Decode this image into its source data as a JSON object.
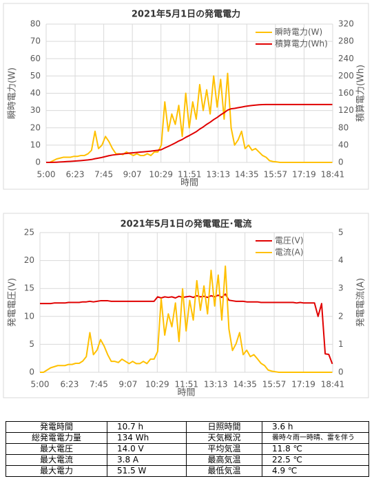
{
  "chart_data": [
    {
      "type": "line",
      "title": "2021年5月1日の発電電力",
      "xlabel": "時間",
      "ylabel": "瞬時電力(W)",
      "y2label": "積算電力(Wh)",
      "x": [
        "5:00",
        "5:10",
        "5:20",
        "5:30",
        "5:40",
        "5:50",
        "6:00",
        "6:10",
        "6:20",
        "6:30",
        "6:40",
        "6:50",
        "7:00",
        "7:10",
        "7:20",
        "7:30",
        "7:40",
        "7:50",
        "8:00",
        "8:10",
        "8:20",
        "8:30",
        "8:40",
        "8:50",
        "9:00",
        "9:10",
        "9:20",
        "9:30",
        "9:40",
        "9:50",
        "10:00",
        "10:10",
        "10:20",
        "10:30",
        "10:40",
        "10:50",
        "11:00",
        "11:10",
        "11:20",
        "11:30",
        "11:40",
        "11:50",
        "12:00",
        "12:10",
        "12:20",
        "12:30",
        "12:40",
        "12:50",
        "13:00",
        "13:10",
        "13:20",
        "13:30",
        "13:40",
        "13:50",
        "14:00",
        "14:10",
        "14:20",
        "14:30",
        "14:40",
        "14:50",
        "15:00",
        "15:10",
        "15:20",
        "15:30",
        "15:40",
        "15:50",
        "16:00",
        "16:10",
        "16:20",
        "16:30",
        "16:40",
        "16:50",
        "17:00",
        "17:10",
        "17:20",
        "17:30",
        "17:40",
        "17:50",
        "18:00",
        "18:10",
        "18:20",
        "18:30",
        "18:40"
      ],
      "xlim": [
        "5:00",
        "18:41"
      ],
      "xticks": [
        "5:00",
        "6:23",
        "7:45",
        "9:07",
        "10:29",
        "11:51",
        "13:13",
        "14:35",
        "15:57",
        "17:19",
        "18:41"
      ],
      "ylim": [
        0,
        80
      ],
      "yticks": [
        0,
        10,
        20,
        30,
        40,
        50,
        60,
        70,
        80
      ],
      "y2lim": [
        0,
        320
      ],
      "y2ticks": [
        0,
        40,
        80,
        120,
        160,
        200,
        240,
        280,
        320
      ],
      "grid": true,
      "legend": "upper right",
      "series": [
        {
          "name": "瞬時電力(W)",
          "color": "#ffc000",
          "axis": "y",
          "values": [
            0,
            0,
            1,
            2,
            2.5,
            3,
            3,
            3,
            3.5,
            3.5,
            4,
            4,
            5,
            7,
            18,
            8,
            10,
            15,
            12,
            8,
            5,
            5,
            4.5,
            6,
            5,
            4,
            5,
            4,
            4,
            5,
            4,
            6,
            6,
            10,
            35,
            18,
            28,
            22,
            33,
            15,
            40,
            20,
            35,
            25,
            45,
            30,
            42,
            28,
            50,
            32,
            48,
            25,
            51.5,
            20,
            10,
            13,
            18,
            8,
            10,
            7,
            8,
            6,
            4,
            3,
            1,
            0.5,
            0.3,
            0,
            0,
            0,
            0,
            0,
            0,
            0,
            0,
            0,
            0,
            0,
            0,
            0,
            0,
            0,
            0
          ]
        },
        {
          "name": "積算電力(Wh)",
          "color": "#e00000",
          "axis": "y2",
          "values": [
            0,
            0,
            0.2,
            0.5,
            0.9,
            1.4,
            1.9,
            2.4,
            3,
            3.6,
            4.2,
            4.9,
            5.7,
            6.7,
            8.5,
            10,
            11.5,
            13.5,
            15.5,
            17,
            18,
            19,
            19.8,
            20.7,
            21.6,
            22.3,
            23.1,
            23.8,
            24.5,
            25.3,
            26,
            27,
            28,
            29.5,
            33.5,
            37,
            41,
            45,
            49.5,
            53,
            58,
            62,
            66.5,
            71,
            77,
            82,
            88,
            93,
            99,
            104,
            110,
            115,
            121,
            124,
            125,
            126.5,
            128,
            129.5,
            130.8,
            131.8,
            132.6,
            133.3,
            133.7,
            133.9,
            134,
            134,
            134,
            134,
            134,
            134,
            134,
            134,
            134,
            134,
            134,
            134,
            134,
            134,
            134,
            134,
            134,
            134,
            134
          ]
        }
      ]
    },
    {
      "type": "line",
      "title": "2021年5月1日の発電電圧･電流",
      "xlabel": "時間",
      "ylabel": "発電電圧(V)",
      "y2label": "発電電流(A)",
      "x": [
        "5:00",
        "5:10",
        "5:20",
        "5:30",
        "5:40",
        "5:50",
        "6:00",
        "6:10",
        "6:20",
        "6:30",
        "6:40",
        "6:50",
        "7:00",
        "7:10",
        "7:20",
        "7:30",
        "7:40",
        "7:50",
        "8:00",
        "8:10",
        "8:20",
        "8:30",
        "8:40",
        "8:50",
        "9:00",
        "9:10",
        "9:20",
        "9:30",
        "9:40",
        "9:50",
        "10:00",
        "10:10",
        "10:20",
        "10:30",
        "10:40",
        "10:50",
        "11:00",
        "11:10",
        "11:20",
        "11:30",
        "11:40",
        "11:50",
        "12:00",
        "12:10",
        "12:20",
        "12:30",
        "12:40",
        "12:50",
        "13:00",
        "13:10",
        "13:20",
        "13:30",
        "13:40",
        "13:50",
        "14:00",
        "14:10",
        "14:20",
        "14:30",
        "14:40",
        "14:50",
        "15:00",
        "15:10",
        "15:20",
        "15:30",
        "15:40",
        "15:50",
        "16:00",
        "16:10",
        "16:20",
        "16:30",
        "16:40",
        "16:50",
        "17:00",
        "17:10",
        "17:20",
        "17:30",
        "17:40",
        "17:50",
        "18:00",
        "18:10",
        "18:20",
        "18:30",
        "18:40"
      ],
      "xlim": [
        "5:00",
        "18:41"
      ],
      "xticks": [
        "5:00",
        "6:23",
        "7:45",
        "9:07",
        "10:29",
        "11:51",
        "13:13",
        "14:35",
        "15:57",
        "17:19",
        "18:41"
      ],
      "ylim": [
        0,
        25
      ],
      "yticks": [
        0,
        5,
        10,
        15,
        20,
        25
      ],
      "y2lim": [
        0,
        5
      ],
      "y2ticks": [
        0,
        1,
        2,
        3,
        4,
        5
      ],
      "grid": true,
      "legend": "upper right",
      "series": [
        {
          "name": "電圧(V)",
          "color": "#e00000",
          "axis": "y",
          "values": [
            12.3,
            12.3,
            12.3,
            12.3,
            12.4,
            12.4,
            12.4,
            12.4,
            12.5,
            12.5,
            12.5,
            12.5,
            12.6,
            12.6,
            12.7,
            12.6,
            12.7,
            12.8,
            12.8,
            12.8,
            12.7,
            12.7,
            12.7,
            12.7,
            12.7,
            12.7,
            12.7,
            12.7,
            12.7,
            12.7,
            12.7,
            12.7,
            12.7,
            13.5,
            13.3,
            13.5,
            13.4,
            13.5,
            13.3,
            13.6,
            13.4,
            13.5,
            13.6,
            13.4,
            13.7,
            13.5,
            13.6,
            13.4,
            13.7,
            13.5,
            13.8,
            13.4,
            14.0,
            12.9,
            12.8,
            12.7,
            12.7,
            12.7,
            12.6,
            12.6,
            12.6,
            12.6,
            12.5,
            12.5,
            12.5,
            12.5,
            12.5,
            12.5,
            12.5,
            12.5,
            12.5,
            12.5,
            12.4,
            12.5,
            12.4,
            12.4,
            12.4,
            12.4,
            10.0,
            12.3,
            3.3,
            3.2,
            1.5
          ]
        },
        {
          "name": "電流(A)",
          "color": "#ffc000",
          "axis": "y2",
          "values": [
            0,
            0,
            0.08,
            0.16,
            0.2,
            0.24,
            0.24,
            0.24,
            0.28,
            0.28,
            0.32,
            0.32,
            0.4,
            0.56,
            1.42,
            0.63,
            0.79,
            1.17,
            0.94,
            0.63,
            0.39,
            0.39,
            0.35,
            0.47,
            0.39,
            0.31,
            0.39,
            0.31,
            0.31,
            0.39,
            0.31,
            0.47,
            0.47,
            0.74,
            2.63,
            1.33,
            2.09,
            1.63,
            2.48,
            1.1,
            2.99,
            1.48,
            2.57,
            1.87,
            3.28,
            2.22,
            3.09,
            2.09,
            3.65,
            2.37,
            3.48,
            1.87,
            3.8,
            1.55,
            0.78,
            1.02,
            1.42,
            0.63,
            0.79,
            0.56,
            0.63,
            0.48,
            0.32,
            0.24,
            0.08,
            0.04,
            0.02,
            0,
            0,
            0,
            0,
            0,
            0,
            0,
            0,
            0,
            0,
            0,
            0,
            0,
            0,
            0,
            0
          ]
        }
      ]
    }
  ],
  "table": {
    "rows": [
      [
        "発電時間",
        "10.7 h",
        "日照時間",
        "3.6 h"
      ],
      [
        "総発電電力量",
        "134 Wh",
        "天気概況",
        "曇時々雨一時晴、雷を伴う"
      ],
      [
        "最大電圧",
        "14.0 V",
        "平均気温",
        "11.8 ℃"
      ],
      [
        "最大電流",
        "3.8 A",
        "最高気温",
        "22.5 ℃"
      ],
      [
        "最大電力",
        "51.5 W",
        "最低気温",
        "4.9 ℃"
      ]
    ]
  }
}
